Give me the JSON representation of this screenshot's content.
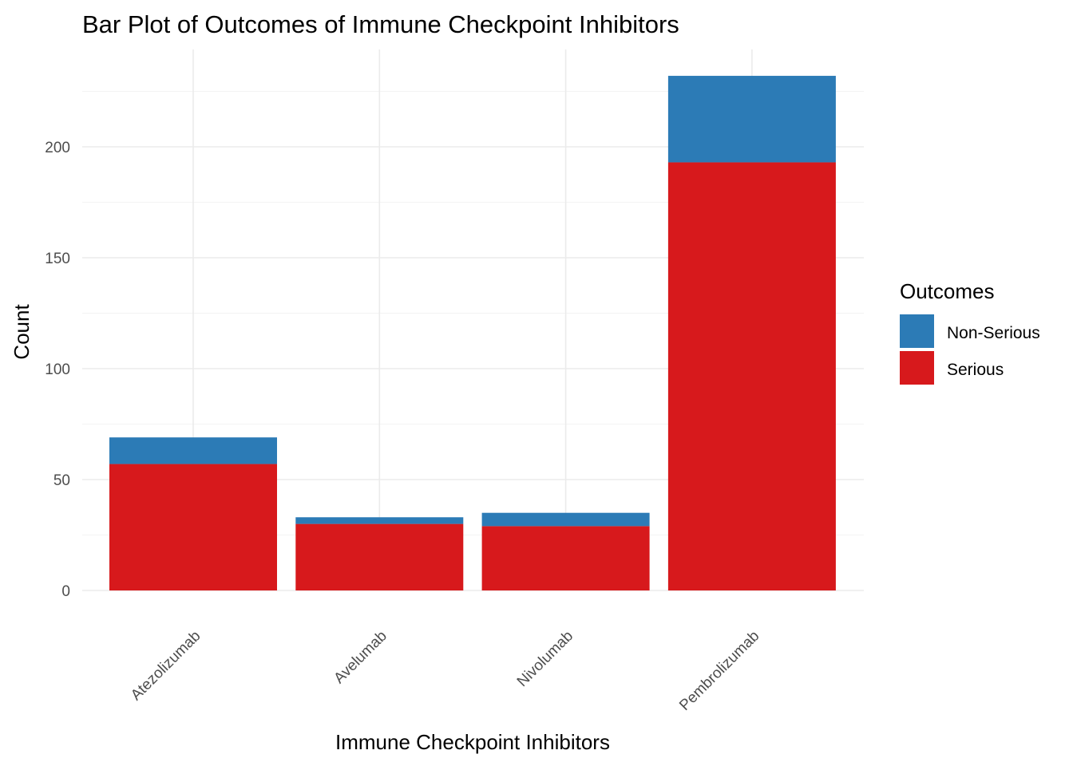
{
  "chart_data": {
    "type": "bar",
    "stacked": true,
    "title": "Bar Plot of Outcomes of Immune Checkpoint Inhibitors",
    "xlabel": "Immune Checkpoint Inhibitors",
    "ylabel": "Count",
    "categories": [
      "Atezolizumab",
      "Avelumab",
      "Nivolumab",
      "Pembrolizumab"
    ],
    "series": [
      {
        "name": "Serious",
        "color": "#d7191c",
        "values": [
          57,
          30,
          29,
          193
        ]
      },
      {
        "name": "Non-Serious",
        "color": "#2c7bb6",
        "values": [
          12,
          3,
          6,
          39
        ]
      }
    ],
    "ylim": [
      0,
      232
    ],
    "yticks": [
      0,
      50,
      100,
      150,
      200
    ],
    "grid": true,
    "legend": {
      "title": "Outcomes",
      "position": "right",
      "entries": [
        "Non-Serious",
        "Serious"
      ]
    }
  }
}
